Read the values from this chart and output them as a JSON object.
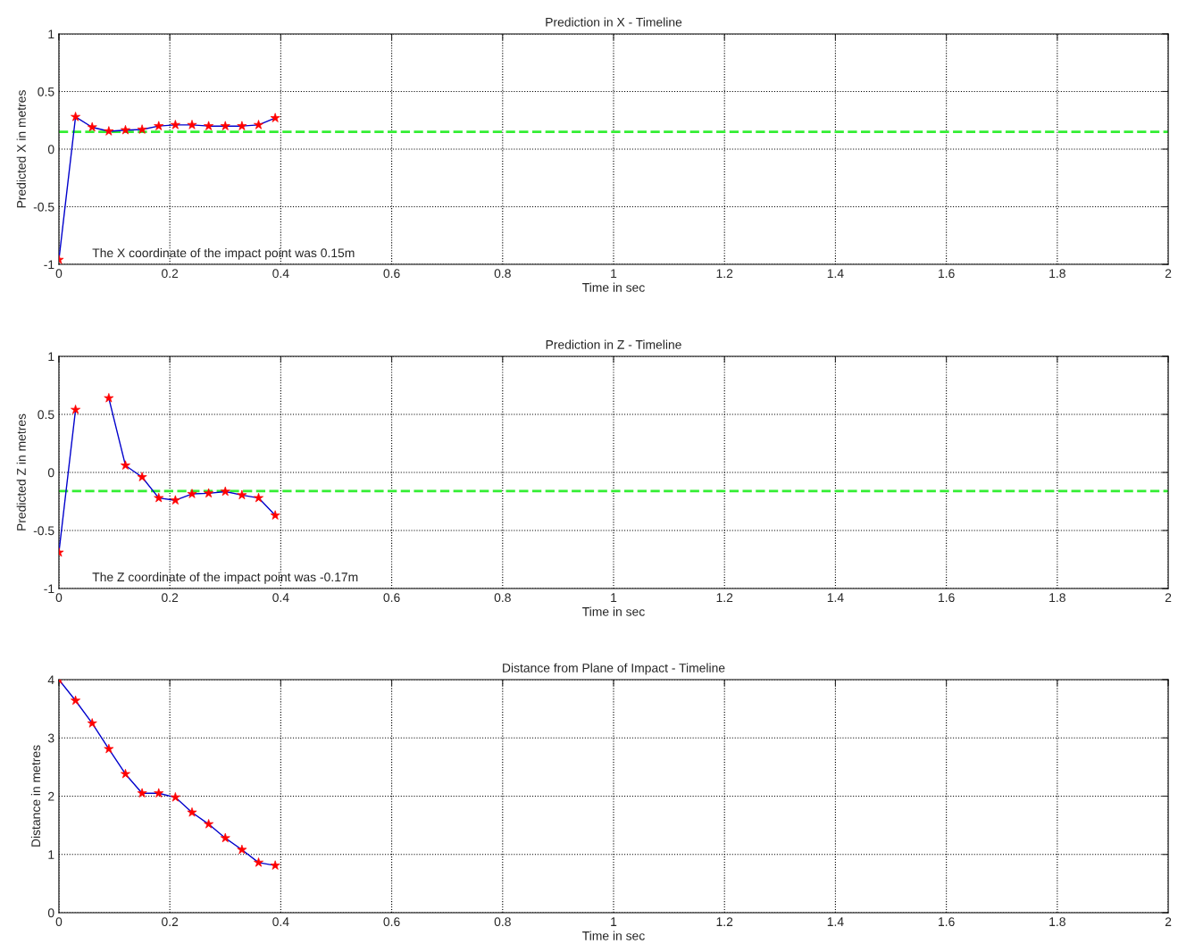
{
  "chart_data": [
    {
      "type": "line",
      "title": "Prediction in X - Timeline",
      "xlabel": "Time in sec",
      "ylabel": "Predicted X in metres",
      "x": [
        0,
        0.03,
        0.06,
        0.09,
        0.12,
        0.15,
        0.18,
        0.21,
        0.24,
        0.27,
        0.3,
        0.33,
        0.36,
        0.39
      ],
      "series": [
        {
          "color": "#0000cc",
          "colors": [
            "#ff0000",
            "#ff0000",
            "#ff0000",
            "#ff0000",
            "#ff0000",
            "#ff0000",
            "#ff0000",
            "#ff0000",
            "#ff0000",
            "#ff0000",
            "#ff0000",
            "#ff0000",
            "#ff0000",
            "#ff0000"
          ],
          "values": [
            -0.96,
            0.28,
            0.19,
            0.155,
            0.165,
            0.17,
            0.2,
            0.21,
            0.21,
            0.2,
            0.2,
            0.2,
            0.21,
            0.27
          ]
        }
      ],
      "marker": "star",
      "line_style": "solid",
      "ref_lines": [
        {
          "axis": "y",
          "value": 0.15,
          "color": "#33ee33",
          "line_style": "dashed"
        }
      ],
      "annotations": [
        "The X coordinate of the impact point was 0.15m"
      ],
      "xlim": [
        0,
        2
      ],
      "xticks": [
        0,
        0.2,
        0.4,
        0.6,
        0.8,
        1,
        1.2,
        1.4,
        1.6,
        1.8,
        2
      ],
      "ylim": [
        -1,
        1
      ],
      "yticks": [
        -1,
        -0.5,
        0,
        0.5,
        1
      ],
      "grid": true
    },
    {
      "type": "line",
      "title": "Prediction in Z - Timeline",
      "xlabel": "Time in sec",
      "ylabel": "Predicted Z in metres",
      "x": [
        0,
        0.03,
        0.06,
        0.09,
        0.12,
        0.15,
        0.18,
        0.21,
        0.24,
        0.27,
        0.3,
        0.33,
        0.36,
        0.39
      ],
      "series": [
        {
          "color": "#0000cc",
          "colors": [
            "#ff0000",
            "#ff0000",
            "#ff0000",
            "#ff0000",
            "#ff0000",
            "#ff0000",
            "#ff0000",
            "#ff0000",
            "#ff0000",
            "#ff0000",
            "#ff0000",
            "#ff0000",
            "#ff0000",
            "#ff0000"
          ],
          "values": [
            -0.69,
            0.54,
            null,
            0.64,
            0.06,
            -0.04,
            -0.22,
            -0.24,
            -0.185,
            -0.18,
            -0.165,
            -0.195,
            -0.22,
            -0.37
          ]
        }
      ],
      "marker": "star",
      "line_style": "solid",
      "ref_lines": [
        {
          "axis": "y",
          "value": -0.16,
          "color": "#33ee33",
          "line_style": "dashed"
        }
      ],
      "annotations": [
        "The Z coordinate of the impact point was -0.17m"
      ],
      "xlim": [
        0,
        2
      ],
      "xticks": [
        0,
        0.2,
        0.4,
        0.6,
        0.8,
        1,
        1.2,
        1.4,
        1.6,
        1.8,
        2
      ],
      "ylim": [
        -1,
        1
      ],
      "yticks": [
        -1,
        -0.5,
        0,
        0.5,
        1
      ],
      "grid": true
    },
    {
      "type": "line",
      "title": "Distance from Plane of Impact - Timeline",
      "xlabel": "Time in sec",
      "ylabel": "Distance in metres",
      "x": [
        0,
        0.03,
        0.06,
        0.09,
        0.12,
        0.15,
        0.18,
        0.21,
        0.24,
        0.27,
        0.3,
        0.33,
        0.36,
        0.39
      ],
      "series": [
        {
          "color": "#0000cc",
          "colors": [
            "#ff0000",
            "#ff0000",
            "#ff0000",
            "#ff0000",
            "#ff0000",
            "#ff0000",
            "#ff0000",
            "#ff0000",
            "#ff0000",
            "#ff0000",
            "#ff0000",
            "#ff0000",
            "#ff0000",
            "#ff0000"
          ],
          "values": [
            4.0,
            3.64,
            3.25,
            2.81,
            2.38,
            2.05,
            2.05,
            1.98,
            1.72,
            1.52,
            1.28,
            1.08,
            0.86,
            0.81
          ]
        }
      ],
      "marker": "star",
      "line_style": "solid",
      "xlim": [
        0,
        2
      ],
      "xticks": [
        0,
        0.2,
        0.4,
        0.6,
        0.8,
        1,
        1.2,
        1.4,
        1.6,
        1.8,
        2
      ],
      "ylim": [
        0,
        4
      ],
      "yticks": [
        0,
        1,
        2,
        3,
        4
      ],
      "grid": true
    }
  ]
}
